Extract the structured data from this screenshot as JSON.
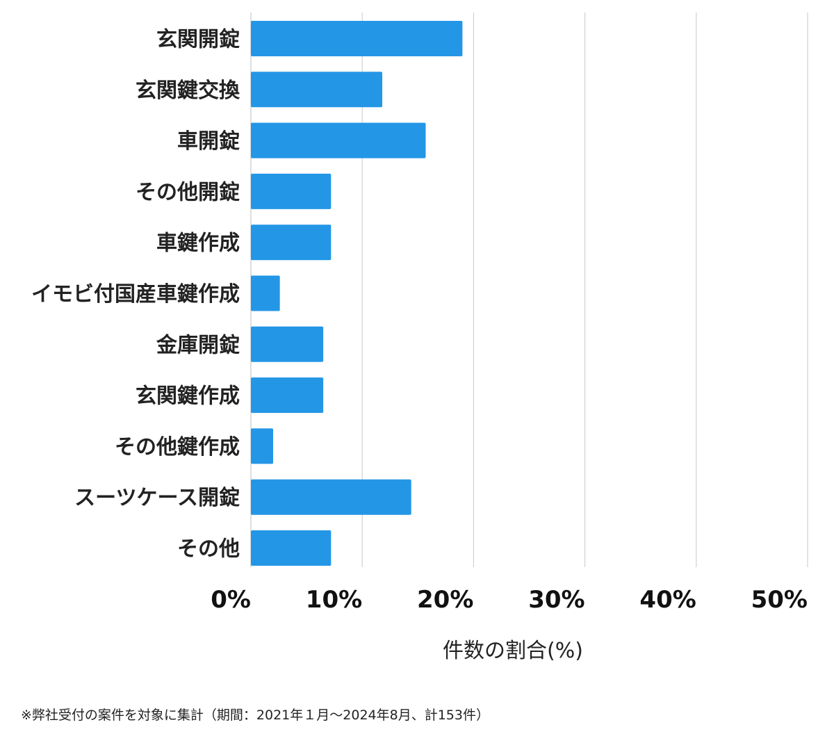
{
  "chart_data": {
    "type": "bar",
    "orientation": "horizontal",
    "categories": [
      "玄関開錠",
      "玄関鍵交換",
      "車開錠",
      "その他開錠",
      "車鍵作成",
      "イモビ付国産車鍵作成",
      "金庫開錠",
      "玄関鍵作成",
      "その他鍵作成",
      "スーツケース開錠",
      "その他"
    ],
    "values": [
      19.0,
      11.8,
      15.7,
      7.2,
      7.2,
      2.6,
      6.5,
      6.5,
      2.0,
      14.4,
      7.2
    ],
    "xlabel": "件数の割合(%)",
    "xlim": [
      0,
      50
    ],
    "xticks": [
      "0%",
      "10%",
      "20%",
      "30%",
      "40%",
      "50%"
    ],
    "grid": true,
    "bar_color": "#2496e6",
    "grid_color": "#d0d0d0"
  },
  "footnote": "※弊社受付の案件を対象に集計（期間：2021年１月〜2024年8月、計153件）"
}
